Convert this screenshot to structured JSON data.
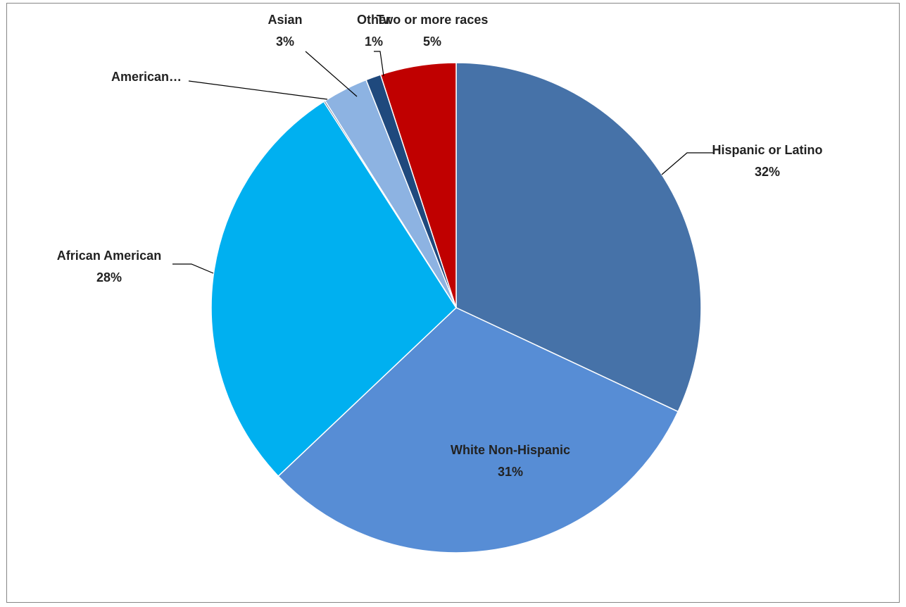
{
  "chart_data": {
    "type": "pie",
    "start_angle_deg": 0,
    "direction": "clockwise",
    "slices": [
      {
        "label": "Hispanic or Latino",
        "label_lines": [
          "Hispanic or Latino"
        ],
        "value": 32,
        "value_label": "32%",
        "color": "#4672A8"
      },
      {
        "label": "White Non-Hispanic",
        "label_lines": [
          "White Non-Hispanic"
        ],
        "value": 31,
        "value_label": "31%",
        "color": "#578DD5"
      },
      {
        "label": "African American",
        "label_lines": [
          "African American"
        ],
        "value": 28,
        "value_label": "28%",
        "color": "#00B0F0"
      },
      {
        "label": "American…",
        "label_lines": [
          "American…"
        ],
        "value": 0.1,
        "value_label": "",
        "color": "#1F3864"
      },
      {
        "label": "Asian",
        "label_lines": [
          "Asian"
        ],
        "value": 3,
        "value_label": "3%",
        "color": "#8DB3E2"
      },
      {
        "label": "Other",
        "label_lines": [
          "Other"
        ],
        "value": 1,
        "value_label": "1%",
        "color": "#1F497D"
      },
      {
        "label": "Two or more races",
        "label_lines": [
          "Two or more races"
        ],
        "value": 5,
        "value_label": "5%",
        "color": "#C00000"
      }
    ]
  }
}
